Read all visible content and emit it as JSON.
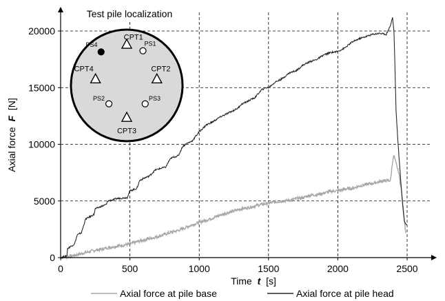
{
  "chart_data": {
    "type": "line",
    "xlabel": "Time",
    "xlabel_symbol": "t",
    "xlabel_unit": "[s]",
    "ylabel": "Axial force",
    "ylabel_symbol": "F",
    "ylabel_unit": "[N]",
    "xlim": [
      0,
      2500
    ],
    "ylim": [
      0,
      20000
    ],
    "x_ticks": [
      0,
      500,
      1000,
      1500,
      2000,
      2500
    ],
    "y_ticks": [
      0,
      5000,
      10000,
      15000,
      20000
    ],
    "grid": "dashed",
    "legend_position": "bottom",
    "series": [
      {
        "name": "Axial force at pile base",
        "color": "#a6a6a6",
        "x": [
          0,
          50,
          100,
          150,
          200,
          250,
          300,
          350,
          400,
          450,
          500,
          550,
          600,
          650,
          700,
          750,
          800,
          850,
          900,
          950,
          1000,
          1050,
          1100,
          1150,
          1200,
          1250,
          1300,
          1350,
          1400,
          1450,
          1500,
          1550,
          1600,
          1650,
          1700,
          1750,
          1800,
          1850,
          1900,
          1950,
          2000,
          2050,
          2100,
          2150,
          2200,
          2250,
          2300,
          2350,
          2380,
          2395,
          2405,
          2420,
          2440,
          2460,
          2475,
          2490
        ],
        "y": [
          0,
          80,
          200,
          350,
          500,
          650,
          750,
          900,
          1000,
          1100,
          1200,
          1400,
          1550,
          1700,
          1850,
          2050,
          2250,
          2400,
          2650,
          2900,
          3100,
          3300,
          3500,
          3750,
          3950,
          4100,
          4300,
          4400,
          4550,
          4700,
          4800,
          4900,
          5000,
          5050,
          5200,
          5300,
          5500,
          5550,
          5700,
          5850,
          5900,
          6050,
          6100,
          6300,
          6450,
          6550,
          6700,
          6800,
          6800,
          8500,
          9000,
          8300,
          7500,
          5800,
          4000,
          2200
        ]
      },
      {
        "name": "Axial force at pile head",
        "color": "#262626",
        "x": [
          0,
          45,
          50,
          100,
          120,
          150,
          170,
          180,
          240,
          250,
          290,
          330,
          340,
          380,
          400,
          480,
          500,
          550,
          570,
          600,
          640,
          680,
          700,
          760,
          780,
          800,
          850,
          880,
          900,
          950,
          980,
          1000,
          1050,
          1100,
          1150,
          1200,
          1250,
          1280,
          1300,
          1350,
          1380,
          1400,
          1450,
          1480,
          1500,
          1550,
          1600,
          1650,
          1700,
          1750,
          1800,
          1850,
          1900,
          1950,
          2000,
          2050,
          2100,
          2150,
          2200,
          2250,
          2300,
          2350,
          2380,
          2395,
          2405,
          2412,
          2420,
          2435,
          2450,
          2465,
          2480,
          2495
        ],
        "y": [
          0,
          150,
          800,
          1200,
          2000,
          2200,
          3000,
          3400,
          3800,
          4300,
          4500,
          4700,
          5000,
          5100,
          5200,
          5300,
          5900,
          6100,
          6800,
          7000,
          7200,
          7700,
          7800,
          8000,
          8500,
          8800,
          9000,
          9800,
          10000,
          10300,
          10800,
          11100,
          11700,
          12000,
          12400,
          12700,
          13000,
          13200,
          13500,
          13800,
          14000,
          14100,
          14800,
          15000,
          15000,
          15500,
          15800,
          16300,
          16500,
          17000,
          17300,
          17500,
          17900,
          18100,
          18200,
          18500,
          19000,
          19300,
          19500,
          19700,
          19800,
          19700,
          20500,
          21200,
          20000,
          17000,
          13000,
          10000,
          7500,
          5000,
          3200,
          2900
        ]
      }
    ],
    "inset": {
      "title": "Test pile localization",
      "markers": [
        {
          "label": "CPT1",
          "kind": "triangle",
          "cx": 0.0,
          "cy": -0.74,
          "lx": 0.12,
          "ly": -0.87
        },
        {
          "label": "PS1",
          "kind": "open-circle",
          "cx": 0.29,
          "cy": -0.62,
          "lx": 0.42,
          "ly": -0.76
        },
        {
          "label": "PS4",
          "kind": "filled-circle",
          "cx": -0.46,
          "cy": -0.6,
          "lx": -0.63,
          "ly": -0.74
        },
        {
          "label": "CPT4",
          "kind": "triangle",
          "cx": -0.56,
          "cy": -0.12,
          "lx": -0.77,
          "ly": -0.3
        },
        {
          "label": "CPT2",
          "kind": "triangle",
          "cx": 0.54,
          "cy": -0.12,
          "lx": 0.61,
          "ly": -0.3
        },
        {
          "label": "PS2",
          "kind": "open-circle",
          "cx": -0.32,
          "cy": 0.33,
          "lx": -0.5,
          "ly": 0.22
        },
        {
          "label": "PS3",
          "kind": "open-circle",
          "cx": 0.33,
          "cy": 0.33,
          "lx": 0.5,
          "ly": 0.22
        },
        {
          "label": "CPT3",
          "kind": "triangle",
          "cx": 0.0,
          "cy": 0.57,
          "lx": 0.0,
          "ly": 0.81
        }
      ]
    }
  }
}
